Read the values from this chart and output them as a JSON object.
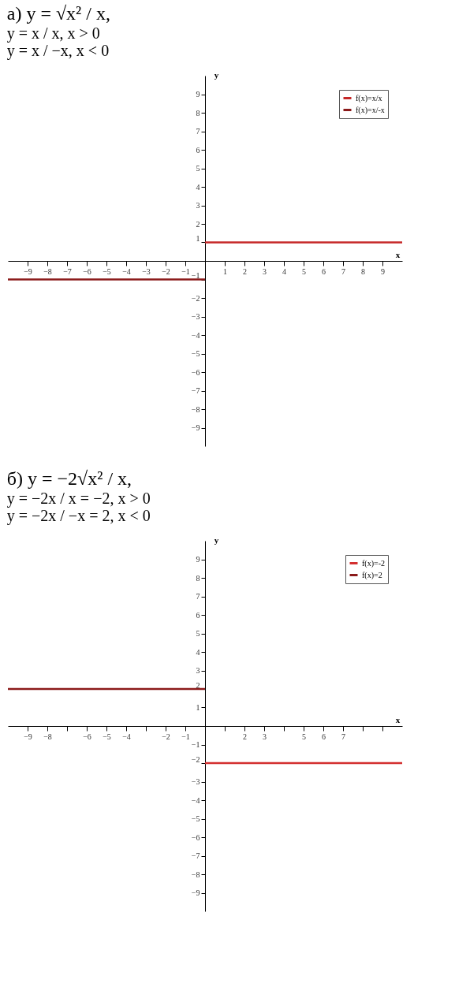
{
  "chart_data": [
    {
      "type": "line",
      "title": "а) y = √x² / x,",
      "annotations": [
        "y = x / x,   x > 0",
        "y = x / −x,   x < 0"
      ],
      "xlabel": "x",
      "ylabel": "y",
      "xlim": [
        -10,
        10
      ],
      "ylim": [
        -10,
        10
      ],
      "xticks": [
        -9,
        -8,
        -7,
        -6,
        -5,
        -4,
        -3,
        -2,
        -1,
        1,
        2,
        3,
        4,
        5,
        6,
        7,
        8,
        9
      ],
      "yticks": [
        -9,
        -8,
        -7,
        -6,
        -5,
        -4,
        -3,
        -2,
        -1,
        1,
        2,
        3,
        4,
        5,
        6,
        7,
        8,
        9
      ],
      "legend": "top right",
      "grid": false,
      "series": [
        {
          "name": "f(x)=x/x",
          "color": "#c62828",
          "x": [
            0,
            10
          ],
          "values": [
            1,
            1
          ]
        },
        {
          "name": "f(x)=x/-x",
          "color": "#8b1a1a",
          "x": [
            -10,
            0
          ],
          "values": [
            -1,
            -1
          ]
        }
      ]
    },
    {
      "type": "line",
      "title": "б) y = −2√x² / x,",
      "annotations": [
        "y = −2x / x = −2,   x > 0",
        "y = −2x / −x = 2,   x < 0"
      ],
      "xlabel": "x",
      "ylabel": "y",
      "xlim": [
        -10,
        10
      ],
      "ylim": [
        -10,
        10
      ],
      "xticks": [
        -9,
        -8,
        {
          "value": -7,
          "label": null
        },
        -6,
        -5,
        -4,
        {
          "value": -3,
          "label": null
        },
        -2,
        -1,
        {
          "value": 1,
          "label": null
        },
        2,
        3,
        {
          "value": 4,
          "label": null
        },
        5,
        6,
        7,
        {
          "value": 8,
          "label": null
        },
        {
          "value": 9,
          "label": null
        }
      ],
      "yticks": [
        -9,
        -8,
        -7,
        -6,
        -5,
        -4,
        -3,
        -2,
        -1,
        1,
        2,
        3,
        4,
        5,
        6,
        7,
        8,
        9
      ],
      "legend": "top right",
      "grid": false,
      "series": [
        {
          "name": "f(x)=-2",
          "color": "#d32f2f",
          "x": [
            0,
            10
          ],
          "values": [
            -2,
            -2
          ]
        },
        {
          "name": "f(x)=2",
          "color": "#8b1a1a",
          "x": [
            -10,
            0
          ],
          "values": [
            2,
            2
          ]
        }
      ]
    }
  ]
}
